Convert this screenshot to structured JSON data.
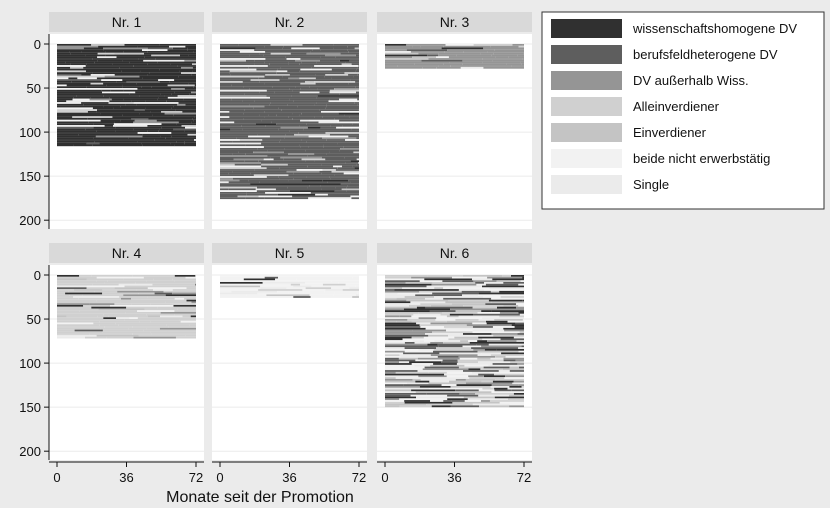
{
  "chart_data": {
    "type": "heatmap",
    "subtype": "sequence index plot",
    "xlabel": "Monate seit der Promotion",
    "ylabel": "",
    "x_ticks": [
      0,
      36,
      72
    ],
    "y_ticks": [
      0,
      50,
      100,
      150,
      200
    ],
    "xlim": [
      0,
      72
    ],
    "ylim": [
      0,
      210
    ],
    "y_axis_inverted": true,
    "legend_position": "top-right",
    "legend": [
      {
        "label": "wissenschaftshomogene DV",
        "color": "#303030"
      },
      {
        "label": "berufsfeldheterogene DV",
        "color": "#5e5e5e"
      },
      {
        "label": "DV außerhalb Wiss.",
        "color": "#959595"
      },
      {
        "label": "Alleinverdiener",
        "color": "#d0d0d0"
      },
      {
        "label": "Einverdiener",
        "color": "#c4c4c4"
      },
      {
        "label": "beide nicht erwerbstätig",
        "color": "#f2f2f2"
      },
      {
        "label": "Single",
        "color": "#ebebeb"
      }
    ],
    "panels": [
      {
        "title": "Nr. 1",
        "n_sequences": 115,
        "dominant_state": "wissenschaftshomogene DV"
      },
      {
        "title": "Nr. 2",
        "n_sequences": 175,
        "dominant_state": "berufsfeldheterogene DV"
      },
      {
        "title": "Nr. 3",
        "n_sequences": 28,
        "dominant_state": "DV außerhalb Wiss."
      },
      {
        "title": "Nr. 4",
        "n_sequences": 72,
        "dominant_state": "Alleinverdiener"
      },
      {
        "title": "Nr. 5",
        "n_sequences": 25,
        "dominant_state": "beide nicht erwerbstätig"
      },
      {
        "title": "Nr. 6",
        "n_sequences": 150,
        "dominant_state": "mixed"
      }
    ]
  }
}
